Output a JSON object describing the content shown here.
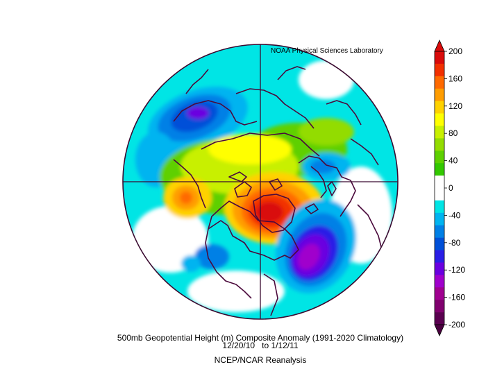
{
  "figure": {
    "credit": "NOAA Physical Sciences Laboratory",
    "title_line1": "500mb Geopotential Height (m) Composite Anomaly (1991-2020 Climatology)",
    "title_line2": "12/20/10   to 1/12/11",
    "title_line3": "NCEP/NCAR Reanalysis"
  },
  "colorbar": {
    "tick_labels": [
      "200",
      "160",
      "120",
      "80",
      "40",
      "0",
      "-40",
      "-80",
      "-120",
      "-160",
      "-200"
    ],
    "bins": [
      {
        "color": "#d90b0b"
      },
      {
        "color": "#f23000"
      },
      {
        "color": "#ff6a00"
      },
      {
        "color": "#ff9d00"
      },
      {
        "color": "#ffd200"
      },
      {
        "color": "#ffff00"
      },
      {
        "color": "#c8f000"
      },
      {
        "color": "#93dc00"
      },
      {
        "color": "#5ed000"
      },
      {
        "color": "#33c800"
      },
      {
        "color": "#ffffff"
      },
      {
        "color": "#ffffff"
      },
      {
        "color": "#00e5e5"
      },
      {
        "color": "#00b4f0"
      },
      {
        "color": "#0080e6"
      },
      {
        "color": "#0050d8"
      },
      {
        "color": "#2a1ee6"
      },
      {
        "color": "#6a00e0"
      },
      {
        "color": "#a000cc"
      },
      {
        "color": "#a00090"
      },
      {
        "color": "#80006e"
      },
      {
        "color": "#5a0050"
      }
    ],
    "top_arrow_color": "#d90b0b",
    "bottom_arrow_color": "#4a003f"
  },
  "colors": {
    "coast": "#4b0a3c",
    "grid": "#3a0a30",
    "disc_border": "#3a0a30"
  }
}
